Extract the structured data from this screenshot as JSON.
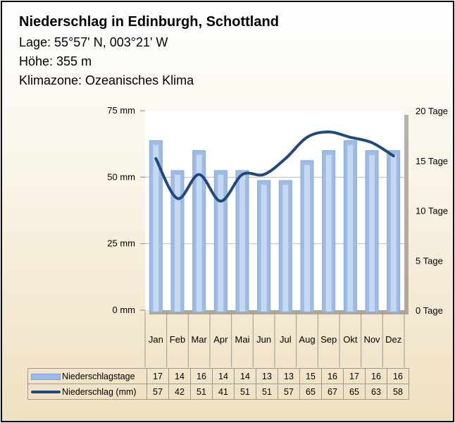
{
  "header": {
    "title": "Niederschlag in Edinburgh, Schottland",
    "location": "Lage: 55°57' N, 003°21' W",
    "elevation": "Höhe: 355 m",
    "climate_zone": "Klimazone: Ozeanisches Klima"
  },
  "colors": {
    "bars": "#9dbbe4",
    "line": "#1f497d",
    "plot_bg": "#ffffff"
  },
  "chart_data": {
    "type": "bar+line",
    "title": "Niederschlag in Edinburgh, Schottland",
    "categories": [
      "Jan",
      "Feb",
      "Mar",
      "Apr",
      "Mai",
      "Jun",
      "Jul",
      "Aug",
      "Sep",
      "Okt",
      "Nov",
      "Dez"
    ],
    "left_axis": {
      "ylim": [
        0,
        75
      ],
      "ticks": [
        "0 mm",
        "25 mm",
        "50 mm",
        "75 mm"
      ],
      "tick_values": [
        0,
        25,
        50,
        75
      ]
    },
    "right_axis": {
      "ylim": [
        0,
        20
      ],
      "ticks": [
        "0 Tage",
        "5 Tage",
        "10 Tage",
        "15 Tage",
        "20 Tage"
      ],
      "tick_values": [
        0,
        5,
        10,
        15,
        20
      ]
    },
    "series": [
      {
        "name": "Niederschlagstage",
        "type": "bar",
        "axis": "right",
        "values": [
          17,
          14,
          16,
          14,
          14,
          13,
          13,
          15,
          16,
          17,
          16,
          16
        ]
      },
      {
        "name": "Niederschlag (mm)",
        "type": "line",
        "axis": "left",
        "values": [
          57,
          42,
          51,
          41,
          51,
          51,
          57,
          65,
          67,
          65,
          63,
          58
        ]
      }
    ],
    "grid": true
  }
}
